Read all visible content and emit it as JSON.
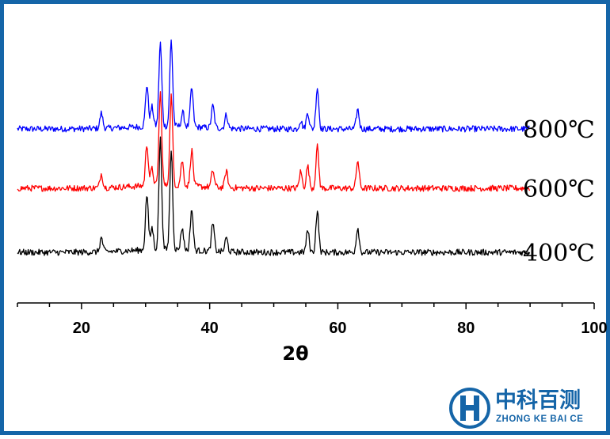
{
  "chart_data": {
    "type": "line",
    "title": "",
    "xlabel": "2θ",
    "ylabel": "",
    "xlim": [
      10,
      100
    ],
    "x_ticks": [
      "20",
      "40",
      "60",
      "80",
      "100"
    ],
    "grid": false,
    "legend": "series labels placed at right end of each trace",
    "series": [
      {
        "name": "800℃",
        "color": "#0000ff",
        "baseline": 2.0,
        "peaks": [
          [
            23.1,
            0.11
          ],
          [
            30.2,
            0.3
          ],
          [
            31.0,
            0.14
          ],
          [
            32.3,
            0.6
          ],
          [
            34.0,
            0.62
          ],
          [
            35.8,
            0.1
          ],
          [
            37.2,
            0.28
          ],
          [
            40.5,
            0.16
          ],
          [
            42.6,
            0.1
          ],
          [
            54.2,
            0.06
          ],
          [
            55.3,
            0.12
          ],
          [
            56.8,
            0.3
          ],
          [
            63.1,
            0.14
          ]
        ]
      },
      {
        "name": "600℃",
        "color": "#ff0000",
        "baseline": 1.0,
        "peaks": [
          [
            23.1,
            0.1
          ],
          [
            30.2,
            0.3
          ],
          [
            31.0,
            0.12
          ],
          [
            32.3,
            0.67
          ],
          [
            34.0,
            0.65
          ],
          [
            35.7,
            0.18
          ],
          [
            37.2,
            0.26
          ],
          [
            40.5,
            0.12
          ],
          [
            42.6,
            0.12
          ],
          [
            54.2,
            0.12
          ],
          [
            55.3,
            0.16
          ],
          [
            56.8,
            0.3
          ],
          [
            63.1,
            0.2
          ]
        ]
      },
      {
        "name": "400℃",
        "color": "#000000",
        "baseline": 0.0,
        "peaks": [
          [
            23.1,
            0.1
          ],
          [
            30.2,
            0.4
          ],
          [
            31.0,
            0.16
          ],
          [
            32.3,
            0.8
          ],
          [
            34.0,
            0.72
          ],
          [
            35.7,
            0.16
          ],
          [
            37.2,
            0.3
          ],
          [
            40.5,
            0.2
          ],
          [
            42.6,
            0.1
          ],
          [
            55.3,
            0.16
          ],
          [
            56.8,
            0.3
          ],
          [
            63.1,
            0.18
          ]
        ]
      }
    ]
  },
  "logo": {
    "name_cn": "中科百测",
    "name_en": "ZHONG KE BAI CE",
    "color": "#1565a8"
  }
}
